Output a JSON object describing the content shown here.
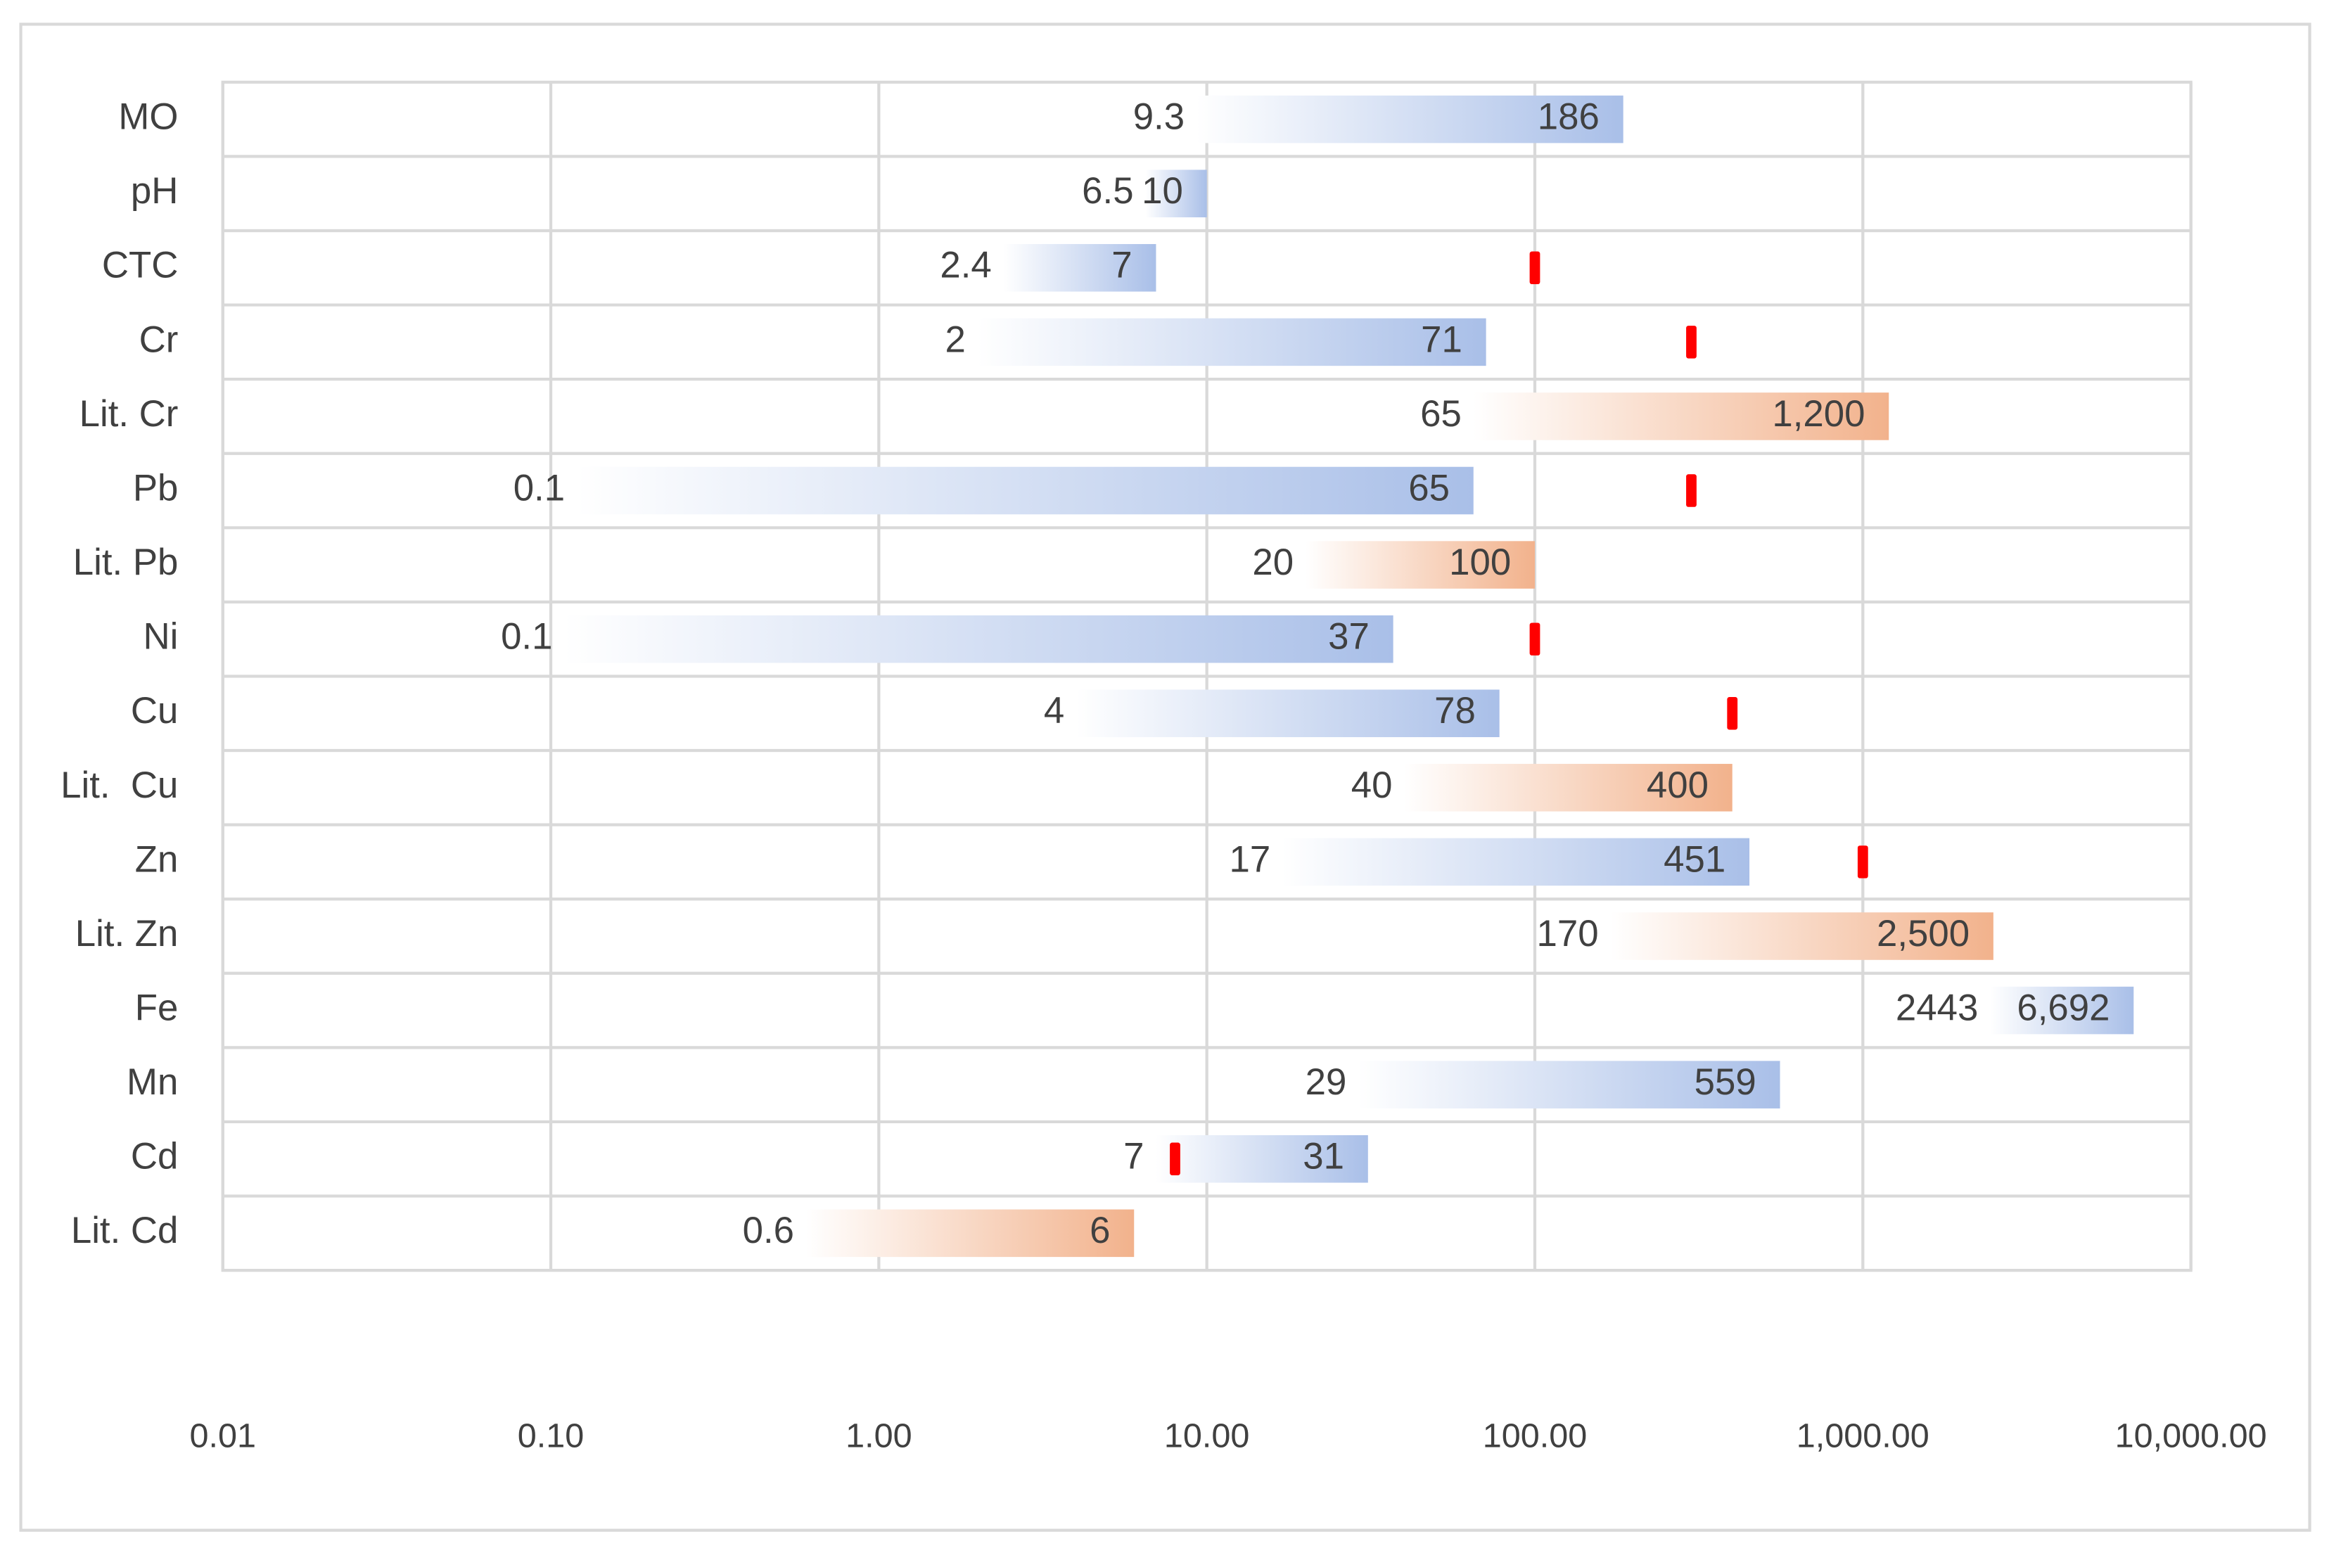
{
  "chart_data": {
    "type": "floating-bar",
    "categories": [
      "MO",
      "pH",
      "CTC",
      "Cr",
      "Lit. Cr",
      "Pb",
      "Lit. Pb",
      "Ni",
      "Cu",
      "Lit.  Cu",
      "Zn",
      "Lit. Zn",
      "Fe",
      "Mn",
      "Cd",
      "Lit. Cd"
    ],
    "min": [
      9.3,
      6.5,
      2.4,
      2,
      65,
      0.12,
      20,
      0.11,
      4,
      40,
      17,
      170,
      2443,
      29,
      7,
      0.6
    ],
    "min_labels": [
      "9.3",
      "6.5",
      "2.4",
      "2",
      "65",
      "0.1",
      "20",
      "0.1",
      "4",
      "40",
      "17",
      "170",
      "2443",
      "29",
      "7",
      "0.6"
    ],
    "max": [
      186,
      10,
      7,
      71,
      1200,
      65,
      100,
      37,
      78,
      400,
      451,
      2500,
      6692,
      559,
      31,
      6
    ],
    "max_labels": [
      "186",
      "10",
      "7",
      "71",
      "1,200",
      "65",
      "100",
      "37",
      "78",
      "400",
      "451",
      "2,500",
      "6,692",
      "559",
      "31",
      "6"
    ],
    "colors": [
      "#a9bfe8",
      "#a9bfe8",
      "#a9bfe8",
      "#a9bfe8",
      "#f2b28c",
      "#a9bfe8",
      "#f2b28c",
      "#a9bfe8",
      "#a9bfe8",
      "#f2b28c",
      "#a9bfe8",
      "#f2b28c",
      "#a9bfe8",
      "#a9bfe8",
      "#a9bfe8",
      "#f2b28c"
    ],
    "reference": [
      null,
      null,
      100,
      300,
      null,
      300,
      null,
      100,
      400,
      null,
      1000,
      null,
      null,
      null,
      8,
      null
    ],
    "reference_color": "#ff0000",
    "xscale": "log",
    "xlim": [
      0.01,
      10000
    ],
    "xticks": [
      0.01,
      {
        "value": 0.1,
        "label": "0.10"
      },
      {
        "value": 1,
        "label": "1.00"
      },
      {
        "value": 10,
        "label": "10.00"
      },
      {
        "value": 100,
        "label": "100.00"
      },
      {
        "value": 1000,
        "label": "1,000.00"
      },
      {
        "value": 10000,
        "label": "10,000.00"
      }
    ],
    "grid": true
  }
}
